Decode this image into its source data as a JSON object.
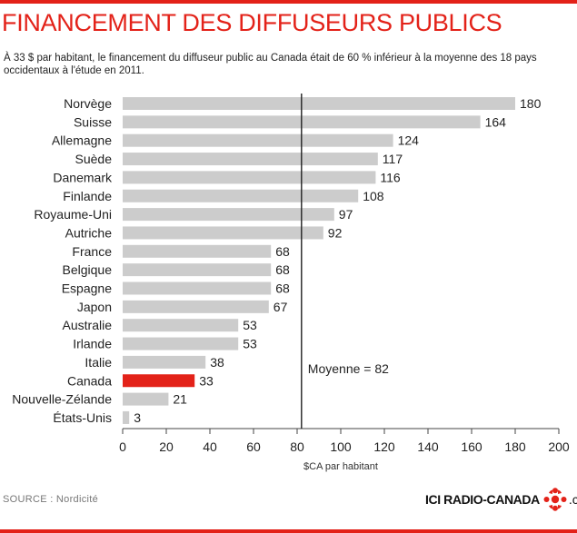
{
  "title": "FINANCEMENT DES DIFFUSEURS PUBLICS",
  "subtitle": "À 33 $ par habitant, le financement du diffuseur public au Canada était de 60 % inférieur à la moyenne des 18 pays occidentaux à l'étude en 2011.",
  "source": "SOURCE : Nordicité",
  "logo": {
    "brand": "ICI RADIO-CANADA",
    "suffix": ".ca"
  },
  "colors": {
    "accent": "#e32219",
    "bar": "#cccccc",
    "highlight": "#e32219"
  },
  "chart_data": {
    "type": "bar",
    "orientation": "horizontal",
    "categories": [
      "Norvège",
      "Suisse",
      "Allemagne",
      "Suède",
      "Danemark",
      "Finlande",
      "Royaume-Uni",
      "Autriche",
      "France",
      "Belgique",
      "Espagne",
      "Japon",
      "Australie",
      "Irlande",
      "Italie",
      "Canada",
      "Nouvelle-Zélande",
      "États-Unis"
    ],
    "values": [
      180,
      164,
      124,
      117,
      116,
      108,
      97,
      92,
      68,
      68,
      68,
      67,
      53,
      53,
      38,
      33,
      21,
      3
    ],
    "highlight": "Canada",
    "xlabel": "$CA par habitant",
    "xlim": [
      0,
      200
    ],
    "xticks": [
      0,
      20,
      40,
      60,
      80,
      100,
      120,
      140,
      160,
      180,
      200
    ],
    "reference_line": {
      "value": 82,
      "label": "Moyenne = 82"
    },
    "grid": false
  }
}
